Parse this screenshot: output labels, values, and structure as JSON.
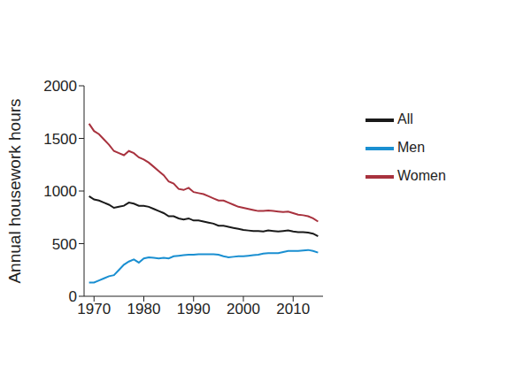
{
  "chart_data": {
    "type": "line",
    "y_label": "Annual housework hours",
    "x": [
      1969,
      1970,
      1971,
      1972,
      1973,
      1974,
      1975,
      1976,
      1977,
      1978,
      1979,
      1980,
      1981,
      1982,
      1983,
      1984,
      1985,
      1986,
      1987,
      1988,
      1989,
      1990,
      1991,
      1992,
      1993,
      1994,
      1995,
      1996,
      1997,
      1998,
      1999,
      2000,
      2001,
      2002,
      2003,
      2004,
      2005,
      2006,
      2007,
      2008,
      2009,
      2010,
      2011,
      2012,
      2013,
      2014,
      2015
    ],
    "series": [
      {
        "name": "All",
        "color": "#1a1a1a",
        "values": [
          950,
          920,
          910,
          890,
          870,
          840,
          850,
          860,
          890,
          880,
          860,
          860,
          850,
          830,
          810,
          790,
          760,
          760,
          740,
          730,
          740,
          720,
          720,
          710,
          700,
          690,
          670,
          670,
          660,
          650,
          640,
          630,
          625,
          620,
          620,
          615,
          625,
          620,
          615,
          620,
          625,
          615,
          610,
          610,
          605,
          595,
          570
        ]
      },
      {
        "name": "Men",
        "color": "#1a8fd1",
        "values": [
          130,
          130,
          150,
          170,
          190,
          200,
          250,
          300,
          330,
          350,
          320,
          360,
          370,
          365,
          360,
          365,
          360,
          380,
          385,
          390,
          395,
          395,
          400,
          400,
          400,
          400,
          395,
          380,
          370,
          375,
          380,
          380,
          385,
          390,
          395,
          405,
          410,
          410,
          410,
          420,
          430,
          430,
          430,
          435,
          440,
          430,
          415
        ]
      },
      {
        "name": "Women",
        "color": "#a8323e",
        "values": [
          1640,
          1570,
          1540,
          1490,
          1440,
          1380,
          1360,
          1340,
          1380,
          1360,
          1320,
          1300,
          1270,
          1230,
          1190,
          1150,
          1090,
          1070,
          1020,
          1010,
          1030,
          990,
          980,
          970,
          950,
          930,
          910,
          910,
          890,
          870,
          850,
          840,
          830,
          820,
          810,
          810,
          815,
          810,
          805,
          800,
          805,
          790,
          775,
          770,
          760,
          740,
          710
        ]
      }
    ],
    "xlim": [
      1968,
      2016
    ],
    "ylim": [
      0,
      2000
    ],
    "xticks": [
      1970,
      1980,
      1990,
      2000,
      2010
    ],
    "yticks": [
      0,
      500,
      1000,
      1500,
      2000
    ],
    "grid": false,
    "legend": "upper right"
  }
}
